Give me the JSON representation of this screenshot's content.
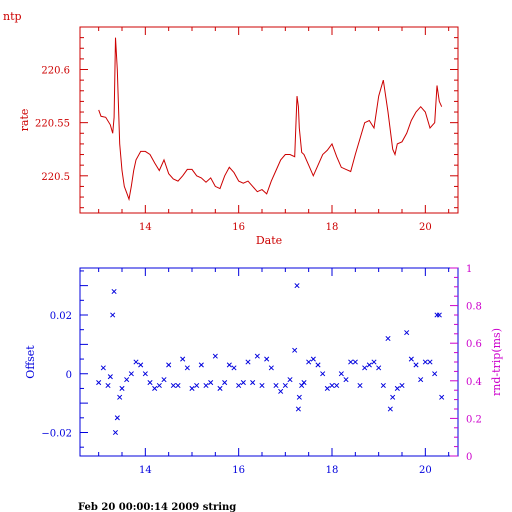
{
  "colors": {
    "top": "#cc0000",
    "offset": "#0000dd",
    "rtt": "#cc00cc",
    "footer": "#000000"
  },
  "footer_text": "Feb 20 00:00:14 2009 string",
  "chart_data": [
    {
      "type": "line",
      "corner_label": "ntp",
      "xlabel": "Date",
      "ylabel": "rate",
      "xlim": [
        12.6,
        20.7
      ],
      "ylim": [
        220.465,
        220.64
      ],
      "xticks": [
        {
          "v": 14,
          "label": "14"
        },
        {
          "v": 16,
          "label": "16"
        },
        {
          "v": 18,
          "label": "18"
        },
        {
          "v": 20,
          "label": "20"
        }
      ],
      "yticks": [
        {
          "v": 220.5,
          "label": "220.5"
        },
        {
          "v": 220.55,
          "label": "220.55"
        },
        {
          "v": 220.6,
          "label": "220.6"
        }
      ],
      "x": [
        13.0,
        13.05,
        13.15,
        13.25,
        13.3,
        13.33,
        13.36,
        13.4,
        13.45,
        13.5,
        13.55,
        13.6,
        13.65,
        13.7,
        13.75,
        13.8,
        13.9,
        14.0,
        14.1,
        14.2,
        14.3,
        14.4,
        14.5,
        14.6,
        14.7,
        14.8,
        14.9,
        15.0,
        15.1,
        15.2,
        15.3,
        15.4,
        15.5,
        15.6,
        15.7,
        15.8,
        15.9,
        16.0,
        16.1,
        16.2,
        16.3,
        16.4,
        16.5,
        16.6,
        16.7,
        16.8,
        16.9,
        17.0,
        17.1,
        17.2,
        17.25,
        17.28,
        17.3,
        17.35,
        17.4,
        17.5,
        17.6,
        17.7,
        17.8,
        17.9,
        18.0,
        18.1,
        18.2,
        18.3,
        18.4,
        18.5,
        18.6,
        18.7,
        18.8,
        18.9,
        19.0,
        19.1,
        19.2,
        19.3,
        19.35,
        19.4,
        19.5,
        19.6,
        19.7,
        19.8,
        19.9,
        20.0,
        20.1,
        20.2,
        20.25,
        20.3,
        20.35
      ],
      "y": [
        220.562,
        220.556,
        220.555,
        220.548,
        220.54,
        220.555,
        220.63,
        220.6,
        220.53,
        220.505,
        220.49,
        220.484,
        220.478,
        220.49,
        220.505,
        220.515,
        220.523,
        220.523,
        220.52,
        220.512,
        220.505,
        220.515,
        220.502,
        220.497,
        220.495,
        220.5,
        220.506,
        220.506,
        220.5,
        220.498,
        220.494,
        220.498,
        220.49,
        220.488,
        220.5,
        220.508,
        220.503,
        220.495,
        220.493,
        220.495,
        220.49,
        220.485,
        220.487,
        220.483,
        220.495,
        220.505,
        220.515,
        220.52,
        220.52,
        220.518,
        220.575,
        220.565,
        220.545,
        220.522,
        220.52,
        220.51,
        220.5,
        220.51,
        220.52,
        220.524,
        220.53,
        220.518,
        220.508,
        220.506,
        220.504,
        220.52,
        220.535,
        220.55,
        220.552,
        220.545,
        220.575,
        220.59,
        220.56,
        220.525,
        220.52,
        220.53,
        220.532,
        220.54,
        220.552,
        220.56,
        220.565,
        220.56,
        220.545,
        220.55,
        220.585,
        220.57,
        220.565
      ]
    },
    {
      "type": "scatter",
      "xlabel": "",
      "ylabel": "Offset",
      "y2label": "rnd-trip(ms)",
      "xlim": [
        12.6,
        20.7
      ],
      "ylim": [
        -0.028,
        0.036
      ],
      "y2lim": [
        0,
        1
      ],
      "xticks": [
        {
          "v": 14,
          "label": "14"
        },
        {
          "v": 16,
          "label": "16"
        },
        {
          "v": 18,
          "label": "18"
        },
        {
          "v": 20,
          "label": "20"
        }
      ],
      "yticks": [
        {
          "v": -0.02,
          "label": "−0.02"
        },
        {
          "v": 0,
          "label": "0"
        },
        {
          "v": 0.02,
          "label": "0.02"
        }
      ],
      "y2ticks": [
        {
          "v": 0,
          "label": "0"
        },
        {
          "v": 0.2,
          "label": "0.2"
        },
        {
          "v": 0.4,
          "label": "0.4"
        },
        {
          "v": 0.6,
          "label": "0.6"
        },
        {
          "v": 0.8,
          "label": "0.8"
        },
        {
          "v": 1,
          "label": "1"
        }
      ],
      "series": [
        {
          "color_key": "offset",
          "x": [
            13.0,
            13.1,
            13.2,
            13.25,
            13.3,
            13.33,
            13.36,
            13.4,
            13.45,
            13.5,
            13.6,
            13.7,
            13.8,
            13.9,
            14.0,
            14.1,
            14.2,
            14.3,
            14.4,
            14.5,
            14.6,
            14.7,
            14.8,
            14.9,
            15.0,
            15.1,
            15.2,
            15.3,
            15.4,
            15.5,
            15.6,
            15.7,
            15.8,
            15.9,
            16.0,
            16.1,
            16.2,
            16.3,
            16.4,
            16.5,
            16.6,
            16.7,
            16.8,
            16.9,
            17.0,
            17.1,
            17.2,
            17.25,
            17.28,
            17.3,
            17.35,
            17.4,
            17.5,
            17.6,
            17.7,
            17.8,
            17.9,
            18.0,
            18.1,
            18.2,
            18.3,
            18.4,
            18.5,
            18.6,
            18.7,
            18.8,
            18.9,
            19.0,
            19.1,
            19.2,
            19.25,
            19.3,
            19.4,
            19.5,
            19.6,
            19.7,
            19.8,
            19.9,
            20.0,
            20.1,
            20.2,
            20.25,
            20.3,
            20.35
          ],
          "y": [
            -0.003,
            0.002,
            -0.004,
            -0.001,
            0.02,
            0.028,
            -0.02,
            -0.015,
            -0.008,
            -0.005,
            -0.002,
            0.0,
            0.004,
            0.003,
            0.0,
            -0.003,
            -0.005,
            -0.004,
            -0.002,
            0.003,
            -0.004,
            -0.004,
            0.005,
            0.002,
            -0.005,
            -0.004,
            0.003,
            -0.004,
            -0.003,
            0.006,
            -0.005,
            -0.003,
            0.003,
            0.002,
            -0.004,
            -0.003,
            0.004,
            -0.003,
            0.006,
            -0.004,
            0.005,
            0.002,
            -0.004,
            -0.006,
            -0.004,
            -0.002,
            0.008,
            0.03,
            -0.012,
            -0.008,
            -0.004,
            -0.003,
            0.004,
            0.005,
            0.003,
            0.0,
            -0.005,
            -0.004,
            -0.004,
            0.0,
            -0.002,
            0.004,
            0.004,
            -0.004,
            0.002,
            0.003,
            0.004,
            0.002,
            -0.004,
            0.012,
            -0.012,
            -0.008,
            -0.005,
            -0.004,
            0.014,
            0.005,
            0.003,
            -0.002,
            0.004,
            0.004,
            0.0,
            0.02,
            0.02,
            -0.008
          ]
        }
      ]
    }
  ]
}
